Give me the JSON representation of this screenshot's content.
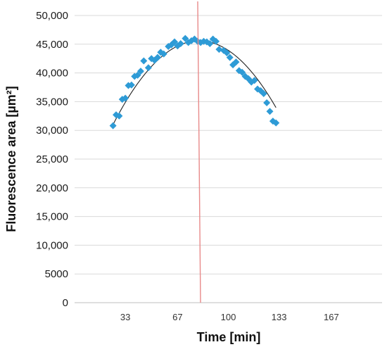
{
  "chart_data": {
    "type": "scatter",
    "xlabel": "Time [min]",
    "ylabel": "Fluorescence area [µm²]",
    "xlim": [
      0,
      200
    ],
    "ylim": [
      0,
      50000
    ],
    "x_ticks": [
      33,
      67,
      100,
      133,
      167
    ],
    "x_tick_labels": [
      "33",
      "67",
      "100",
      "133",
      "167"
    ],
    "y_ticks": [
      0,
      5000,
      10000,
      15000,
      20000,
      25000,
      30000,
      35000,
      40000,
      45000,
      50000
    ],
    "y_tick_labels": [
      "0",
      "5000",
      "10,000",
      "15,000",
      "20,000",
      "25,000",
      "30,000",
      "35,000",
      "40,000",
      "45,000",
      "50,000"
    ],
    "grid": "horizontal",
    "marker_color": "#2e9bd6",
    "trend_color": "#222222",
    "vline_color": "#e88a8a",
    "series": [
      {
        "marker": "diamond",
        "points": [
          [
            25,
            30800
          ],
          [
            27,
            32700
          ],
          [
            29,
            32500
          ],
          [
            31,
            35400
          ],
          [
            33,
            35600
          ],
          [
            35,
            37800
          ],
          [
            37,
            37900
          ],
          [
            39,
            39400
          ],
          [
            41,
            39600
          ],
          [
            43,
            40300
          ],
          [
            45,
            42100
          ],
          [
            48,
            40900
          ],
          [
            50,
            42500
          ],
          [
            52,
            42200
          ],
          [
            54,
            42700
          ],
          [
            56,
            43600
          ],
          [
            58,
            43300
          ],
          [
            61,
            44600
          ],
          [
            63,
            44900
          ],
          [
            65,
            45400
          ],
          [
            67,
            44700
          ],
          [
            69,
            45100
          ],
          [
            72,
            46000
          ],
          [
            74,
            45300
          ],
          [
            76,
            45600
          ],
          [
            78,
            45900
          ],
          [
            80,
            45500
          ],
          [
            82,
            45300
          ],
          [
            84,
            45500
          ],
          [
            86,
            45400
          ],
          [
            88,
            45100
          ],
          [
            90,
            45900
          ],
          [
            92,
            45500
          ],
          [
            94,
            44100
          ],
          [
            97,
            43900
          ],
          [
            99,
            43500
          ],
          [
            101,
            42700
          ],
          [
            103,
            41400
          ],
          [
            105,
            41900
          ],
          [
            107,
            40400
          ],
          [
            109,
            40100
          ],
          [
            111,
            39400
          ],
          [
            113,
            39000
          ],
          [
            115,
            38400
          ],
          [
            117,
            38700
          ],
          [
            119,
            37200
          ],
          [
            121,
            36900
          ],
          [
            123,
            36400
          ],
          [
            125,
            34800
          ],
          [
            127,
            33300
          ],
          [
            129,
            31600
          ],
          [
            131,
            31300
          ]
        ]
      }
    ],
    "trendline": {
      "type": "quadratic",
      "coefficients": [
        5713,
        0.9063,
        -0.00616
      ]
    },
    "vertical_line": {
      "x": 81
    }
  }
}
